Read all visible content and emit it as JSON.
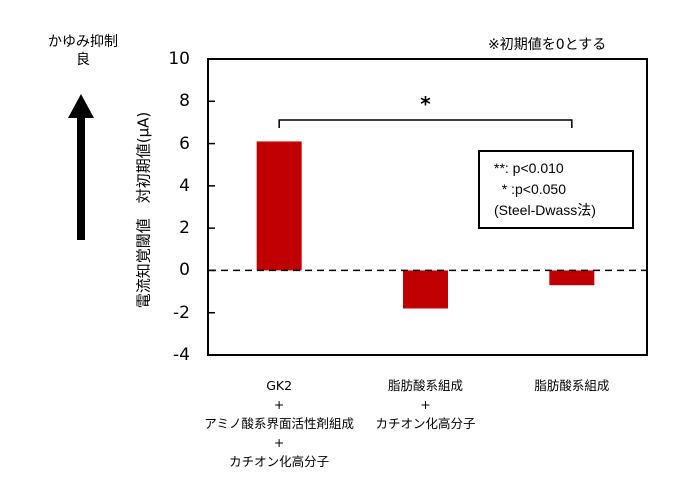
{
  "side_note": {
    "line1": "かゆみ抑制",
    "line2": "良",
    "arrow_direction": "up"
  },
  "note": "※初期値を0とする",
  "legend": {
    "lines": [
      "**: p<0.010",
      "  * :p<0.050",
      "(Steel-Dwass法)"
    ]
  },
  "significance": {
    "label": "*",
    "from_category": 0,
    "to_category": 2
  },
  "colors": {
    "bar": "#C00000",
    "axis": "#000000",
    "baseline": "#000000"
  },
  "chart_data": {
    "type": "bar",
    "title": "",
    "xlabel": "",
    "ylabel": "電流知覚閾値　対初期値(μA)",
    "ylim": [
      -4,
      10
    ],
    "yticks": [
      -4,
      -2,
      0,
      2,
      4,
      6,
      8,
      10
    ],
    "grid": false,
    "baseline": {
      "y": 0,
      "style": "dashed"
    },
    "categories": [
      "GK2 + アミノ酸系界面活性剤組成 + カチオン化高分子",
      "脂肪酸系組成 + カチオン化高分子",
      "脂肪酸系組成"
    ],
    "category_label_lines": [
      [
        "GK2",
        "+",
        "アミノ酸系界面活性剤組成",
        "+",
        "カチオン化高分子"
      ],
      [
        "脂肪酸系組成",
        "+",
        "カチオン化高分子"
      ],
      [
        "脂肪酸系組成"
      ]
    ],
    "values": [
      6.1,
      -1.8,
      -0.7
    ],
    "annotations": [
      {
        "type": "bracket",
        "from": 0,
        "to": 2,
        "label": "*"
      },
      {
        "type": "note",
        "text": "※初期値を0とする"
      },
      {
        "type": "legend_box",
        "text": "**: p<0.010 / *: p<0.050 (Steel-Dwass法)"
      }
    ]
  }
}
